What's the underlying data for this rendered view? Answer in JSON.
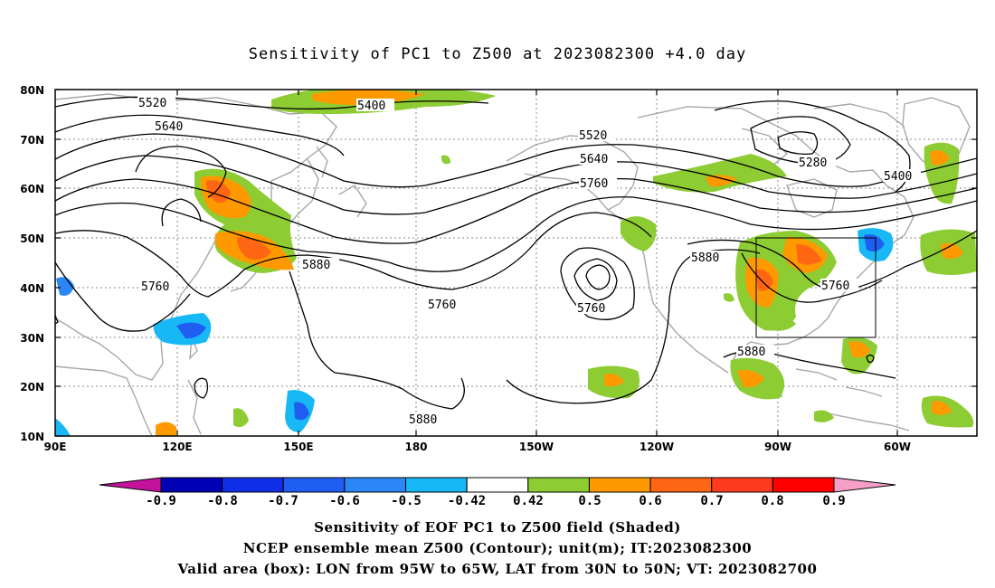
{
  "title": "Sensitivity of PC1 to Z500 at 2023082300 +4.0 day",
  "lat_ticks": [
    "80N",
    "70N",
    "60N",
    "50N",
    "40N",
    "30N",
    "20N",
    "10N"
  ],
  "lon_ticks": [
    "90E",
    "120E",
    "150E",
    "180",
    "150W",
    "120W",
    "90W",
    "60W"
  ],
  "contour_labels": [
    "5520",
    "5640",
    "5400",
    "5520",
    "5640",
    "5760",
    "5280",
    "5400",
    "5880",
    "5760",
    "5760",
    "5760",
    "5880",
    "5760",
    "5880",
    "5880"
  ],
  "colorbar": {
    "labels": [
      "-0.9",
      "-0.8",
      "-0.7",
      "-0.6",
      "-0.5",
      "-0.42",
      "0.42",
      "0.5",
      "0.6",
      "0.7",
      "0.8",
      "0.9"
    ],
    "colors": [
      "#0000b4",
      "#0f2fe6",
      "#1f5ef0",
      "#2b87f5",
      "#17b8f5",
      "#ffffff",
      "#8dcc33",
      "#ff9900",
      "#ff6614",
      "#ff3b1e",
      "#ff0000"
    ],
    "min_color": "#c4129c",
    "max_color": "#f6a0c8"
  },
  "box_region": {
    "lon": [
      "95W",
      "65W"
    ],
    "lat": [
      "30N",
      "50N"
    ]
  },
  "captions": [
    "Sensitivity of EOF PC1 to Z500 field (Shaded)",
    "NCEP ensemble mean Z500 (Contour); unit(m); IT:2023082300",
    "Valid area (box): LON from 95W to 65W, LAT from 30N to 50N; VT: 2023082700"
  ]
}
